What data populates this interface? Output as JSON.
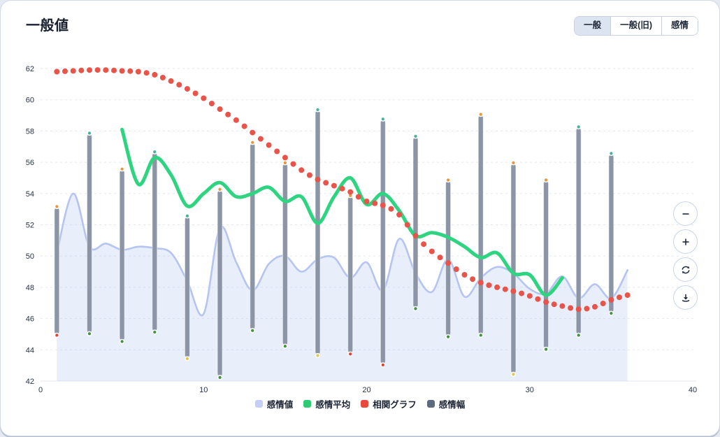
{
  "page": {
    "title": "一般値"
  },
  "toolbar": {
    "buttons": [
      {
        "name": "tab-general",
        "label": "一般",
        "active": true
      },
      {
        "name": "tab-general-old",
        "label": "一般(旧)",
        "active": false
      },
      {
        "name": "tab-emotion",
        "label": "感情",
        "active": false
      }
    ]
  },
  "side_controls": [
    {
      "name": "zoom-out-button",
      "icon": "minus-icon"
    },
    {
      "name": "zoom-in-button",
      "icon": "plus-icon"
    },
    {
      "name": "reset-button",
      "icon": "refresh-icon"
    },
    {
      "name": "download-button",
      "icon": "download-icon"
    }
  ],
  "legend": [
    {
      "label": "感情値",
      "color": "#c5cff6"
    },
    {
      "label": "感情平均",
      "color": "#2dcc74"
    },
    {
      "label": "相関グラフ",
      "color": "#e7493d"
    },
    {
      "label": "感情幅",
      "color": "#5c6a80"
    }
  ],
  "chart_data": {
    "type": "mixed",
    "x_axis": {
      "min": 0,
      "max": 40,
      "ticks": [
        0,
        10,
        20,
        30,
        40
      ]
    },
    "y_axis": {
      "min": 42,
      "max": 62,
      "ticks": [
        42,
        44,
        46,
        48,
        50,
        52,
        54,
        56,
        58,
        60,
        62
      ]
    },
    "grid": {
      "style": "dashed",
      "color": "#e4e7ee"
    },
    "marker_colors": {
      "orange": "#e9973e",
      "teal": "#48b39c",
      "green": "#449441",
      "red": "#e0433a",
      "yellow": "#e3c84b"
    },
    "series": [
      {
        "name": "感情値",
        "type": "area",
        "color": "#b5c4f1",
        "fill": "rgba(187,202,242,0.32)",
        "x": [
          1,
          2,
          3,
          4,
          5,
          6,
          7,
          8,
          9,
          10,
          11,
          12,
          13,
          14,
          15,
          16,
          17,
          18,
          19,
          20,
          21,
          22,
          23,
          24,
          25,
          26,
          27,
          28,
          29,
          30,
          31,
          32,
          33,
          34,
          35,
          36
        ],
        "values": [
          50.2,
          54.0,
          50.6,
          50.8,
          50.4,
          50.6,
          50.5,
          50.2,
          48.4,
          46.3,
          51.8,
          49.6,
          47.8,
          49.5,
          50.0,
          49.0,
          49.8,
          49.9,
          48.6,
          49.6,
          47.8,
          51.1,
          48.9,
          47.7,
          49.8,
          47.4,
          48.6,
          49.3,
          48.9,
          47.9,
          47.6,
          48.7,
          47.3,
          48.2,
          47.3,
          49.1
        ]
      },
      {
        "name": "感情平均",
        "type": "line",
        "color": "#2ed47f",
        "x": [
          5,
          6,
          7,
          8,
          9,
          10,
          11,
          12,
          13,
          14,
          15,
          16,
          17,
          18,
          19,
          20,
          21,
          22,
          23,
          24,
          25,
          26,
          27,
          28,
          29,
          30,
          31,
          32
        ],
        "values": [
          58.1,
          54.6,
          56.3,
          55.2,
          53.2,
          54.0,
          54.7,
          53.8,
          54.0,
          54.4,
          53.5,
          53.8,
          52.1,
          53.8,
          55.0,
          53.3,
          54.0,
          52.9,
          51.3,
          51.5,
          51.2,
          50.6,
          49.9,
          50.2,
          48.9,
          48.8,
          47.5,
          48.6
        ]
      },
      {
        "name": "相関グラフ",
        "type": "dotted",
        "color": "#e85449",
        "dot_step": 0.5,
        "x": [
          1,
          2,
          3,
          4,
          5,
          6,
          7,
          8,
          9,
          10,
          11,
          12,
          13,
          14,
          15,
          16,
          17,
          18,
          19,
          20,
          21,
          22,
          23,
          24,
          25,
          26,
          27,
          28,
          29,
          30,
          31,
          32,
          33,
          34,
          35,
          36
        ],
        "values": [
          61.8,
          61.85,
          61.9,
          61.9,
          61.85,
          61.8,
          61.6,
          61.2,
          60.7,
          60.1,
          59.4,
          58.7,
          57.9,
          57.1,
          56.3,
          55.5,
          54.9,
          54.5,
          54.1,
          53.5,
          53.25,
          52.65,
          51.3,
          50.3,
          49.55,
          48.8,
          48.3,
          48.0,
          47.75,
          47.45,
          47.05,
          46.8,
          46.6,
          46.75,
          47.2,
          47.5
        ]
      },
      {
        "name": "感情幅",
        "type": "range-bar",
        "color": "#8c95a5",
        "bars": [
          {
            "x": 1,
            "low": 45.0,
            "high": 53.1,
            "top": "orange",
            "bottom": "red"
          },
          {
            "x": 3,
            "low": 45.1,
            "high": 57.8,
            "top": "teal",
            "bottom": "green"
          },
          {
            "x": 5,
            "low": 44.6,
            "high": 55.5,
            "top": "orange",
            "bottom": "green"
          },
          {
            "x": 7,
            "low": 45.2,
            "high": 56.6,
            "top": "teal",
            "bottom": "green"
          },
          {
            "x": 9,
            "low": 43.5,
            "high": 52.5,
            "top": "teal",
            "bottom": "yellow"
          },
          {
            "x": 11,
            "low": 42.3,
            "high": 54.2,
            "top": "orange",
            "bottom": "green"
          },
          {
            "x": 13,
            "low": 45.3,
            "high": 57.2,
            "top": "orange",
            "bottom": "green"
          },
          {
            "x": 15,
            "low": 44.3,
            "high": 55.9,
            "top": "orange",
            "bottom": "green"
          },
          {
            "x": 17,
            "low": 43.7,
            "high": 59.3,
            "top": "teal",
            "bottom": "yellow"
          },
          {
            "x": 19,
            "low": 43.8,
            "high": 53.8,
            "top": "orange",
            "bottom": "red"
          },
          {
            "x": 21,
            "low": 43.1,
            "high": 58.7,
            "top": "teal",
            "bottom": "red"
          },
          {
            "x": 23,
            "low": 46.7,
            "high": 57.6,
            "top": "teal",
            "bottom": "green"
          },
          {
            "x": 25,
            "low": 44.9,
            "high": 54.8,
            "top": "orange",
            "bottom": "green"
          },
          {
            "x": 27,
            "low": 45.0,
            "high": 59.0,
            "top": "orange",
            "bottom": "green"
          },
          {
            "x": 29,
            "low": 42.5,
            "high": 55.9,
            "top": "orange",
            "bottom": "yellow"
          },
          {
            "x": 31,
            "low": 44.1,
            "high": 54.8,
            "top": "orange",
            "bottom": "green"
          },
          {
            "x": 33,
            "low": 45.0,
            "high": 58.2,
            "top": "teal",
            "bottom": "green"
          },
          {
            "x": 35,
            "low": 46.4,
            "high": 56.5,
            "top": "teal",
            "bottom": "green"
          }
        ]
      }
    ]
  }
}
